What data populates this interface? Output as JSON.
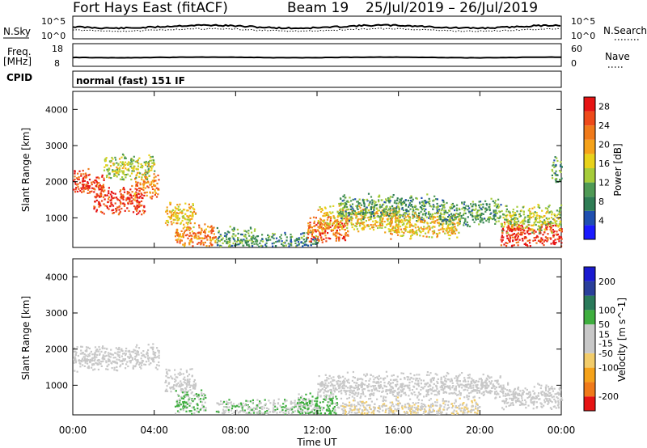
{
  "header": {
    "station": "Fort Hays East (fitACF)",
    "beam": "Beam 19",
    "date_range": "25/Jul/2019 – 26/Jul/2019"
  },
  "strip_panels": {
    "nsky": {
      "label": "N.Sky",
      "tick_top": "10^5",
      "tick_bottom": "10^0"
    },
    "nsearch": {
      "label": "N.Search",
      "tick_top": "10^5",
      "tick_bottom": "10^0"
    },
    "freq": {
      "label_line1": "Freq.",
      "label_line2": "[MHz]",
      "tick_top": "18",
      "tick_bottom": "8"
    },
    "nave": {
      "label": "Nave",
      "tick_top": "60",
      "tick_bottom": "0"
    },
    "cpid": {
      "label": "CPID",
      "text": "normal (fast) 151 IF"
    }
  },
  "colors": {
    "power_scale": [
      "#1a1aff",
      "#1f4fb0",
      "#2f7d55",
      "#4f9a55",
      "#a6cc3a",
      "#e8d21a",
      "#f5a21a",
      "#f07a1a",
      "#ee4a1a",
      "#e61414"
    ],
    "velocity_scale": [
      "#e61414",
      "#f07a1a",
      "#f5a21a",
      "#f2cc6a",
      "#c8c8c8",
      "#c8c8c8",
      "#3fae3f",
      "#2a7a5a",
      "#2a3f9a",
      "#1a1ad0"
    ],
    "ground_scatter": "#bdbdbd"
  },
  "chart_data": [
    {
      "type": "heatmap",
      "title": "",
      "xlabel": "Time UT",
      "ylabel": "Slant Range [km]",
      "xlim": [
        "00:00",
        "24:00"
      ],
      "ylim": [
        180,
        4500
      ],
      "x_ticks": [
        "00:00",
        "04:00",
        "08:00",
        "12:00",
        "16:00",
        "20:00",
        "00:00"
      ],
      "y_ticks": [
        1000,
        2000,
        3000,
        4000
      ],
      "colorbar": {
        "label": "Power [dB]",
        "ticks": [
          4,
          8,
          12,
          16,
          20,
          24,
          28
        ],
        "range": [
          0,
          30
        ]
      },
      "regions": [
        {
          "t_start": 0.0,
          "t_end": 1.5,
          "range_km": 2000,
          "power_db": 26
        },
        {
          "t_start": 1.0,
          "t_end": 3.5,
          "range_km": 1500,
          "power_db": 27
        },
        {
          "t_start": 3.0,
          "t_end": 4.2,
          "range_km": 1900,
          "power_db": 22
        },
        {
          "t_start": 1.5,
          "t_end": 4.0,
          "range_km": 2400,
          "power_db": 14
        },
        {
          "t_start": 4.5,
          "t_end": 6.0,
          "range_km": 1100,
          "power_db": 18
        },
        {
          "t_start": 5.0,
          "t_end": 7.0,
          "range_km": 500,
          "power_db": 22
        },
        {
          "t_start": 7.0,
          "t_end": 9.0,
          "range_km": 400,
          "power_db": 10
        },
        {
          "t_start": 9.0,
          "t_end": 12.0,
          "range_km": 250,
          "power_db": 8
        },
        {
          "t_start": 11.5,
          "t_end": 13.5,
          "range_km": 700,
          "power_db": 24
        },
        {
          "t_start": 12.0,
          "t_end": 16.0,
          "range_km": 1000,
          "power_db": 18
        },
        {
          "t_start": 13.0,
          "t_end": 18.0,
          "range_km": 1300,
          "power_db": 10
        },
        {
          "t_start": 15.5,
          "t_end": 19.0,
          "range_km": 800,
          "power_db": 18
        },
        {
          "t_start": 18.0,
          "t_end": 21.0,
          "range_km": 1150,
          "power_db": 10
        },
        {
          "t_start": 21.0,
          "t_end": 24.0,
          "range_km": 550,
          "power_db": 27
        },
        {
          "t_start": 21.0,
          "t_end": 24.0,
          "range_km": 1000,
          "power_db": 14
        },
        {
          "t_start": 23.5,
          "t_end": 24.0,
          "range_km": 2300,
          "power_db": 10
        }
      ]
    },
    {
      "type": "heatmap",
      "title": "",
      "xlabel": "Time UT",
      "ylabel": "Slant Range [km]",
      "xlim": [
        "00:00",
        "24:00"
      ],
      "ylim": [
        180,
        4500
      ],
      "x_ticks": [
        "00:00",
        "04:00",
        "08:00",
        "12:00",
        "16:00",
        "20:00",
        "00:00"
      ],
      "y_ticks": [
        1000,
        2000,
        3000,
        4000
      ],
      "colorbar": {
        "label": "Velocity [m s^-1]",
        "ticks": [
          200,
          100,
          50,
          15,
          -15,
          -50,
          -100,
          -200
        ],
        "range": [
          -250,
          250
        ]
      },
      "regions": [
        {
          "t_start": 0.0,
          "t_end": 4.2,
          "range_km": 1800,
          "velocity_ms": 0
        },
        {
          "t_start": 4.5,
          "t_end": 6.0,
          "range_km": 1100,
          "velocity_ms": 0
        },
        {
          "t_start": 5.0,
          "t_end": 6.5,
          "range_km": 500,
          "velocity_ms": 60
        },
        {
          "t_start": 7.0,
          "t_end": 12.0,
          "range_km": 300,
          "velocity_ms": 40
        },
        {
          "t_start": 11.0,
          "t_end": 13.0,
          "range_km": 450,
          "velocity_ms": 60
        },
        {
          "t_start": 12.0,
          "t_end": 21.0,
          "range_km": 1000,
          "velocity_ms": 0
        },
        {
          "t_start": 13.0,
          "t_end": 20.0,
          "range_km": 300,
          "velocity_ms": -40
        },
        {
          "t_start": 21.0,
          "t_end": 24.0,
          "range_km": 700,
          "velocity_ms": 0
        }
      ]
    }
  ]
}
